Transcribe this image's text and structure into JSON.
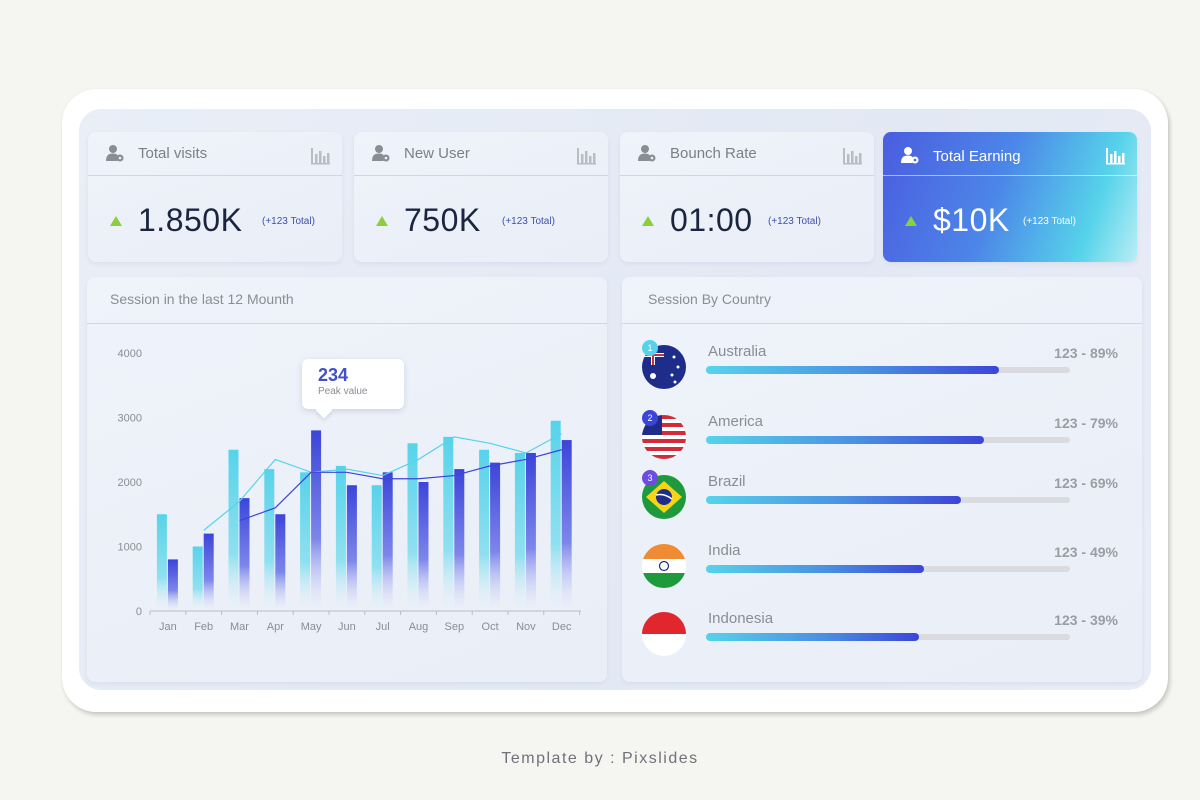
{
  "stats": [
    {
      "title": "Total visits",
      "value": "1.850K",
      "delta": "(+123 Total)",
      "icon": "user-icon"
    },
    {
      "title": "New User",
      "value": "750K",
      "delta": "(+123 Total)",
      "icon": "user-icon"
    },
    {
      "title": "Bounch Rate",
      "value": "01:00",
      "delta": "(+123 Total)",
      "icon": "user-icon"
    },
    {
      "title": "Total Earning",
      "value": "$10K",
      "delta": "(+123 Total)",
      "icon": "user-icon"
    }
  ],
  "session_panel": {
    "title": "Session in the last 12 Mounth"
  },
  "tooltip": {
    "value": "234",
    "label": "Peak value"
  },
  "chart_data": {
    "type": "bar",
    "categories": [
      "Jan",
      "Feb",
      "Mar",
      "Apr",
      "May",
      "Jun",
      "Jul",
      "Aug",
      "Sep",
      "Oct",
      "Nov",
      "Dec"
    ],
    "series": [
      {
        "values": [
          1500,
          1000,
          2500,
          2200,
          2150,
          2250,
          1950,
          2600,
          2700,
          2500,
          2450,
          2950
        ],
        "color": "#56d3ea"
      },
      {
        "values": [
          800,
          1200,
          1750,
          1500,
          2800,
          1950,
          2150,
          2000,
          2200,
          2300,
          2450,
          2650
        ],
        "color": "#3c45d9"
      }
    ],
    "lines": [
      {
        "values": [
          null,
          1250,
          1700,
          2350,
          2150,
          2200,
          2100,
          2350,
          2700,
          2600,
          2450,
          2750
        ],
        "color": "#56d3ea"
      },
      {
        "values": [
          null,
          null,
          1400,
          1600,
          2150,
          2150,
          2050,
          2050,
          2100,
          2250,
          2350,
          2500
        ],
        "color": "#3c45d9"
      }
    ],
    "yticks": [
      0,
      1000,
      2000,
      3000,
      4000
    ],
    "ylim": [
      0,
      4000
    ]
  },
  "country_panel": {
    "title": "Session By Country"
  },
  "countries": [
    {
      "rank": "1",
      "name": "Australia",
      "value": "123 - 89%",
      "pct": 0.805,
      "rank_color": "#56d3ea"
    },
    {
      "rank": "2",
      "name": "America",
      "value": "123 - 79%",
      "pct": 0.765,
      "rank_color": "#3c45d9"
    },
    {
      "rank": "3",
      "name": "Brazil",
      "value": "123 - 69%",
      "pct": 0.7,
      "rank_color": "#6b4de0"
    },
    {
      "rank": "",
      "name": "India",
      "value": "123 - 49%",
      "pct": 0.6,
      "rank_color": ""
    },
    {
      "rank": "",
      "name": "Indonesia",
      "value": "123 - 39%",
      "pct": 0.585,
      "rank_color": ""
    }
  ],
  "footer": {
    "text": "Template by : Pixslides"
  }
}
